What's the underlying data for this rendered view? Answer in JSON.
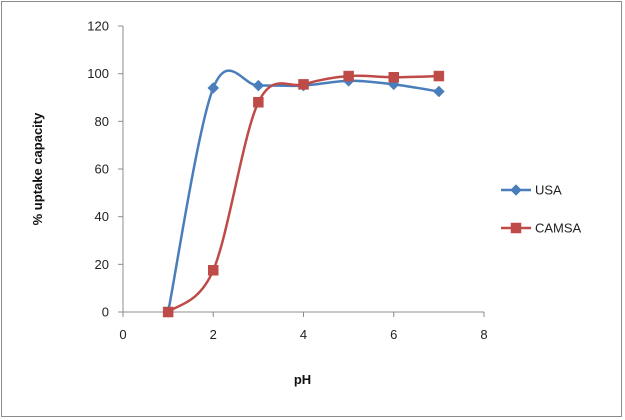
{
  "chart_data": {
    "type": "line",
    "title": "",
    "xlabel": "pH",
    "ylabel": "% uptake capacity",
    "xlim": [
      0,
      8
    ],
    "ylim": [
      0,
      120
    ],
    "xticks": [
      0,
      2,
      4,
      6,
      8
    ],
    "yticks": [
      0,
      20,
      40,
      60,
      80,
      100,
      120
    ],
    "grid": false,
    "legend_position": "right",
    "smooth": true,
    "series": [
      {
        "name": "USA",
        "color": "#4a7ebb",
        "marker": "diamond",
        "x": [
          1,
          2,
          3,
          4,
          5,
          6,
          7
        ],
        "y": [
          0,
          94,
          95,
          95,
          97,
          95.5,
          92.5
        ]
      },
      {
        "name": "CAMSA",
        "color": "#be4b48",
        "marker": "square",
        "x": [
          1,
          2,
          3,
          4,
          5,
          6,
          7
        ],
        "y": [
          0,
          17.5,
          88,
          95.5,
          99,
          98.5,
          99
        ]
      }
    ]
  }
}
